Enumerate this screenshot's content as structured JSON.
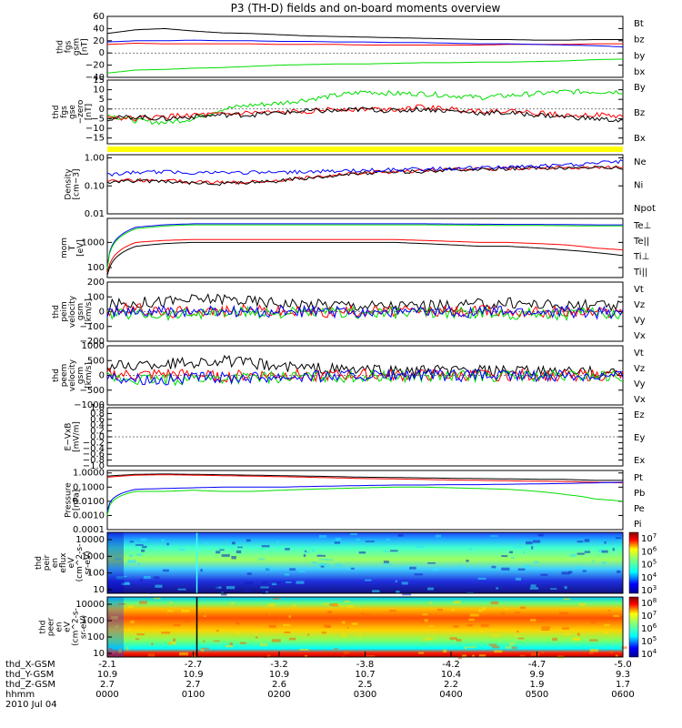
{
  "title": "P3 (TH-D) fields and on-board moments overview",
  "chart_data": {
    "type": "line",
    "title": "P3 (TH-D) fields and on-board moments overview",
    "x_labels": [
      "0000",
      "0100",
      "0200",
      "0300",
      "0400",
      "0500",
      "0600"
    ],
    "time_axis_rows": [
      {
        "label": "thd_X-GSM",
        "values": [
          "-2.1",
          "-2.7",
          "-3.2",
          "-3.8",
          "-4.2",
          "-4.7",
          "-5.0"
        ]
      },
      {
        "label": "thd_Y-GSM",
        "values": [
          "10.9",
          "10.9",
          "10.9",
          "10.7",
          "10.4",
          "9.9",
          "9.3"
        ]
      },
      {
        "label": "thd_Z-GSM",
        "values": [
          "2.7",
          "2.7",
          "2.6",
          "2.5",
          "2.2",
          "1.9",
          "1.7"
        ]
      },
      {
        "label": "hhmm",
        "values": [
          "0000",
          "0100",
          "0200",
          "0300",
          "0400",
          "0500",
          "0600"
        ]
      }
    ],
    "date": "2010 Jul 04",
    "panels": [
      {
        "id": "fgs_gsm",
        "ylabel": [
          "thd",
          "fgs",
          "gsm",
          "[nT]"
        ],
        "ylim": [
          -40,
          60
        ],
        "ticks": [
          "60",
          "40",
          "20",
          "0",
          "−20",
          "−40"
        ],
        "tick_values": [
          60,
          40,
          20,
          0,
          -20,
          -40
        ],
        "series": [
          {
            "name": "Bt",
            "color": "#000000",
            "values": [
              32,
              38,
              40,
              36,
              33,
              32,
              30,
              28,
              27,
              26,
              25,
              24,
              23,
              22,
              22,
              21,
              21,
              22,
              22
            ]
          },
          {
            "name": "bz",
            "color": "#ff0000",
            "values": [
              14,
              16,
              15,
              15,
              15,
              15,
              14,
              14,
              14,
              13,
              13,
              13,
              13,
              13,
              14,
              14,
              14,
              15,
              15
            ]
          },
          {
            "name": "by",
            "color": "#00dd00",
            "values": [
              -33,
              -28,
              -27,
              -25,
              -24,
              -22,
              -20,
              -19,
              -18,
              -18,
              -17,
              -16,
              -16,
              -15,
              -15,
              -14,
              -13,
              -11,
              -10
            ]
          },
          {
            "name": "bx",
            "color": "#0000ff",
            "values": [
              18,
              20,
              20,
              21,
              20,
              20,
              19,
              19,
              18,
              18,
              17,
              17,
              16,
              15,
              15,
              14,
              13,
              12,
              10
            ]
          }
        ]
      },
      {
        "id": "fgs_gse_zero",
        "ylabel": [
          "thd",
          "fgs",
          "gse",
          "−zero",
          "[nT]"
        ],
        "ylim": [
          -18,
          15
        ],
        "ticks": [
          "15",
          "10",
          "5",
          "0",
          "−5",
          "−10",
          "−15"
        ],
        "tick_values": [
          15,
          10,
          5,
          0,
          -5,
          -10,
          -15
        ],
        "series": [
          {
            "name": "By",
            "color": "#00dd00",
            "values": [
              -3,
              -6,
              -7,
              -5,
              0,
              2,
              3,
              5,
              7,
              9,
              8,
              8,
              7,
              6,
              7,
              8,
              9,
              9,
              9
            ]
          },
          {
            "name": "Bz",
            "color": "#ff0000",
            "values": [
              -4,
              -5,
              -4,
              -3,
              -3,
              -2,
              -2,
              -1,
              0,
              0,
              0,
              1,
              0,
              -1,
              -1,
              -2,
              -3,
              -3,
              -4
            ]
          },
          {
            "name": "Bx",
            "color": "#000000",
            "values": [
              -5,
              -4,
              -5,
              -4,
              -3,
              -3,
              -2,
              -1,
              -1,
              0,
              -1,
              0,
              -1,
              -2,
              -2,
              -3,
              -4,
              -5,
              -6
            ]
          }
        ]
      },
      {
        "id": "density",
        "ylabel": [
          "Density",
          "[cm−3]"
        ],
        "log": true,
        "ylim": [
          0.01,
          1.3
        ],
        "ticks": [
          "1.00",
          "0.10",
          "0.01"
        ],
        "tick_values": [
          1,
          0.1,
          0.01
        ],
        "series": [
          {
            "name": "Ne",
            "color": "#ff0000",
            "values": [
              0.14,
              0.16,
              0.15,
              0.14,
              0.13,
              0.14,
              0.16,
              0.2,
              0.25,
              0.3,
              0.32,
              0.34,
              0.38,
              0.4,
              0.42,
              0.44,
              0.45,
              0.45,
              0.45
            ]
          },
          {
            "name": "Ni",
            "color": "#000000",
            "values": [
              0.13,
              0.15,
              0.14,
              0.13,
              0.12,
              0.13,
              0.15,
              0.19,
              0.24,
              0.29,
              0.31,
              0.33,
              0.37,
              0.39,
              0.41,
              0.43,
              0.44,
              0.44,
              0.44
            ]
          },
          {
            "name": "Npot",
            "color": "#0000ff",
            "values": [
              0.25,
              0.3,
              0.32,
              0.3,
              0.3,
              0.3,
              0.3,
              0.32,
              0.34,
              0.36,
              0.38,
              0.4,
              0.42,
              0.44,
              0.48,
              0.5,
              0.55,
              0.65,
              0.75
            ]
          }
        ]
      },
      {
        "id": "temperature",
        "ylabel": [
          "mom",
          "T",
          "[eV]"
        ],
        "log": true,
        "ylim": [
          40,
          9000
        ],
        "ticks": [
          "1000",
          "100"
        ],
        "tick_values": [
          1000,
          100
        ],
        "series": [
          {
            "name": "Te⊥",
            "color": "#ff0000",
            "values": [
              60,
              1000,
              1200,
              1300,
              1300,
              1300,
              1300,
              1300,
              1300,
              1300,
              1300,
              1200,
              1100,
              1000,
              1000,
              900,
              800,
              600,
              500
            ]
          },
          {
            "name": "Te||",
            "color": "#000000",
            "values": [
              50,
              700,
              900,
              1000,
              1000,
              1000,
              1000,
              1000,
              1000,
              1000,
              1000,
              900,
              800,
              700,
              700,
              600,
              500,
              400,
              300
            ]
          },
          {
            "name": "Ti⊥",
            "color": "#0000ff",
            "values": [
              100,
              4000,
              5000,
              5500,
              5500,
              5500,
              5500,
              5500,
              5500,
              5500,
              5500,
              5500,
              5400,
              5300,
              5200,
              5200,
              5100,
              5000,
              5000
            ]
          },
          {
            "name": "Ti||",
            "color": "#00dd00",
            "values": [
              90,
              3500,
              4500,
              5000,
              5000,
              5000,
              5000,
              5000,
              5000,
              5000,
              5000,
              5000,
              4900,
              4800,
              4700,
              4700,
              4600,
              4500,
              4500
            ]
          }
        ]
      },
      {
        "id": "peim_velocity",
        "ylabel": [
          "thd",
          "peim",
          "velocity",
          "gsm",
          "[km/s]"
        ],
        "ylim": [
          -200,
          200
        ],
        "ticks": [
          "200",
          "100",
          "0",
          "−100",
          "−200"
        ],
        "tick_values": [
          200,
          100,
          0,
          -100,
          -200
        ],
        "series": [
          {
            "name": "Vt",
            "color": "#000000",
            "values": [
              40,
              60,
              70,
              80,
              90,
              70,
              60,
              50,
              50,
              40,
              40,
              40,
              40,
              50,
              60,
              50,
              40,
              40,
              30
            ]
          },
          {
            "name": "Vz",
            "color": "#ff0000",
            "values": [
              10,
              20,
              -10,
              10,
              0,
              10,
              0,
              -5,
              0,
              5,
              0,
              0,
              0,
              5,
              0,
              0,
              0,
              -5,
              0
            ]
          },
          {
            "name": "Vy",
            "color": "#00dd00",
            "values": [
              -20,
              -10,
              -20,
              -10,
              -10,
              -5,
              -10,
              -10,
              -5,
              -10,
              -10,
              -5,
              -10,
              -10,
              -15,
              -10,
              -20,
              -10,
              -10
            ]
          },
          {
            "name": "Vx",
            "color": "#0000ff",
            "values": [
              0,
              -10,
              0,
              -5,
              0,
              -5,
              0,
              0,
              -5,
              0,
              0,
              -5,
              0,
              0,
              0,
              -5,
              0,
              -10,
              0
            ]
          }
        ]
      },
      {
        "id": "peem_velocity",
        "ylabel": [
          "thd",
          "peem",
          "velocity",
          "gsm",
          "[km/s]"
        ],
        "ylim": [
          -1000,
          1000
        ],
        "ticks": [
          "1000",
          "500",
          "0",
          "−500",
          "−1000"
        ],
        "tick_values": [
          1000,
          500,
          0,
          -500,
          -1000
        ],
        "series": [
          {
            "name": "Vt",
            "color": "#000000",
            "values": [
              300,
              350,
              400,
              450,
              500,
              400,
              300,
              250,
              200,
              180,
              150,
              150,
              150,
              140,
              130,
              120,
              110,
              100,
              90
            ]
          },
          {
            "name": "Vz",
            "color": "#ff0000",
            "values": [
              50,
              0,
              50,
              0,
              -50,
              0,
              20,
              0,
              0,
              10,
              0,
              0,
              0,
              0,
              0,
              0,
              0,
              0,
              0
            ]
          },
          {
            "name": "Vy",
            "color": "#00dd00",
            "values": [
              -100,
              -150,
              -150,
              -100,
              -100,
              -80,
              -60,
              -50,
              -40,
              -40,
              -30,
              -30,
              -30,
              -20,
              -20,
              -20,
              -20,
              -20,
              -20
            ]
          },
          {
            "name": "Vx",
            "color": "#0000ff",
            "values": [
              -50,
              -100,
              -150,
              -100,
              -80,
              -60,
              -40,
              -30,
              -20,
              -20,
              -20,
              -10,
              -10,
              -10,
              -10,
              -10,
              -10,
              -10,
              -10
            ]
          }
        ]
      },
      {
        "id": "efield",
        "ylabel": [
          "E−VxB",
          "[mV/m]"
        ],
        "ylim": [
          -1,
          1
        ],
        "ticks": [
          "1.0",
          "0.8",
          "0.6",
          "0.4",
          "0.2",
          "0.0",
          "−0.2",
          "−0.4",
          "−0.6",
          "−0.8",
          "−1.0"
        ],
        "tick_values": [
          1,
          0.8,
          0.6,
          0.4,
          0.2,
          0,
          -0.2,
          -0.4,
          -0.6,
          -0.8,
          -1
        ],
        "series": [
          {
            "name": "Ez",
            "color": "#ff0000",
            "values": []
          },
          {
            "name": "Ey",
            "color": "#00dd00",
            "values": []
          },
          {
            "name": "Ex",
            "color": "#0000ff",
            "values": []
          }
        ]
      },
      {
        "id": "pressure",
        "ylabel": [
          "Pressure",
          "[nPa]"
        ],
        "log": true,
        "ylim": [
          0.0001,
          1.5
        ],
        "ticks": [
          "1.0000",
          "0.1000",
          "0.0100",
          "0.0010",
          "0.0001"
        ],
        "tick_values": [
          1,
          0.1,
          0.01,
          0.001,
          0.0001
        ],
        "series": [
          {
            "name": "Pt",
            "color": "#000000",
            "values": [
              0.6,
              0.8,
              0.85,
              0.8,
              0.75,
              0.7,
              0.65,
              0.6,
              0.55,
              0.5,
              0.48,
              0.45,
              0.42,
              0.4,
              0.38,
              0.36,
              0.35,
              0.3,
              0.3
            ]
          },
          {
            "name": "Pb",
            "color": "#ff0000",
            "values": [
              0.5,
              0.7,
              0.75,
              0.7,
              0.65,
              0.6,
              0.55,
              0.5,
              0.45,
              0.4,
              0.38,
              0.35,
              0.32,
              0.3,
              0.28,
              0.26,
              0.25,
              0.22,
              0.2
            ]
          },
          {
            "name": "Pe",
            "color": "#00dd00",
            "values": [
              0.001,
              0.05,
              0.05,
              0.06,
              0.05,
              0.05,
              0.06,
              0.07,
              0.08,
              0.09,
              0.1,
              0.1,
              0.09,
              0.08,
              0.07,
              0.05,
              0.03,
              0.015,
              0.01
            ]
          },
          {
            "name": "Pi",
            "color": "#0000ff",
            "values": [
              0.002,
              0.07,
              0.08,
              0.09,
              0.1,
              0.1,
              0.1,
              0.11,
              0.12,
              0.13,
              0.14,
              0.14,
              0.15,
              0.15,
              0.16,
              0.17,
              0.18,
              0.2,
              0.22
            ]
          }
        ]
      },
      {
        "id": "peir_spec",
        "type": "heatmap",
        "ylabel": [
          "thd",
          "peir",
          "en",
          "eflux",
          "eV",
          "(cm^2-s-",
          "sr-eV)"
        ],
        "ticks": [
          "10000",
          "1000",
          "100",
          "10"
        ],
        "colorbar_ticks": [
          "10^7",
          "10^6",
          "10^5",
          "10^4",
          "10^3"
        ]
      },
      {
        "id": "peer_spec",
        "type": "heatmap",
        "ylabel": [
          "thd",
          "peer",
          "en",
          "eV",
          "(cm^2-s-",
          "sr-eV)"
        ],
        "ticks": [
          "10000",
          "1000",
          "100",
          "10"
        ],
        "colorbar_ticks": [
          "10^8",
          "10^7",
          "10^6",
          "10^5",
          "10^4"
        ]
      }
    ]
  }
}
